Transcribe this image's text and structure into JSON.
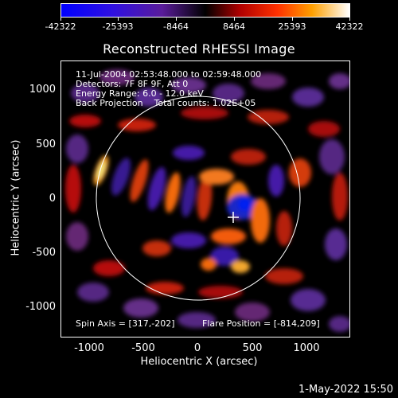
{
  "colorbar": {
    "ticks": [
      "-42322",
      "-25393",
      "-8464",
      "8464",
      "25393",
      "42322"
    ]
  },
  "title": "Reconstructed RHESSI Image",
  "annotations": {
    "line1": "11-Jul-2004 02:53:48.000 to 02:59:48.000",
    "line2": "Detectors: 7F 8F 9F, Att 0",
    "line3": "Energy Range: 6.0 - 12.0 keV",
    "line4": "Back Projection    Total counts: 1.02E+05",
    "spin_axis": "Spin Axis = [317,-202]",
    "flare_position": "Flare Position = [-814,209]"
  },
  "axes": {
    "xlabel": "Heliocentric X (arcsec)",
    "ylabel": "Heliocentric Y (arcsec)",
    "xticks": [
      "-1000",
      "-500",
      "0",
      "500",
      "1000"
    ],
    "yticks": [
      "1000",
      "500",
      "0",
      "-500",
      "-1000"
    ]
  },
  "timestamp": "1-May-2022 15:50",
  "colors": {
    "background": "#000000",
    "foreground": "#ffffff"
  }
}
